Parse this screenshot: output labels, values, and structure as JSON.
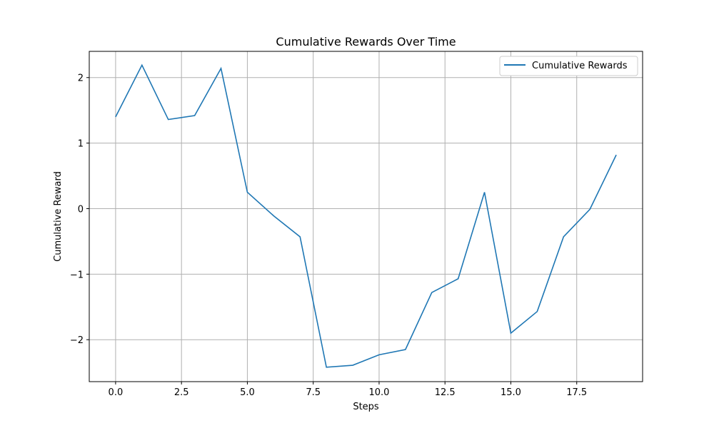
{
  "chart_data": {
    "type": "line",
    "title": "Cumulative Rewards Over Time",
    "xlabel": "Steps",
    "ylabel": "Cumulative Reward",
    "xlim": [
      -1.0,
      20.0
    ],
    "ylim": [
      -2.64,
      2.4
    ],
    "grid": true,
    "legend_position": "top-right",
    "x_ticks": [
      0.0,
      2.5,
      5.0,
      7.5,
      10.0,
      12.5,
      15.0,
      17.5
    ],
    "x_tick_labels": [
      "0.0",
      "2.5",
      "5.0",
      "7.5",
      "10.0",
      "12.5",
      "15.0",
      "17.5"
    ],
    "y_ticks": [
      -2,
      -1,
      0,
      1,
      2
    ],
    "y_tick_labels": [
      "−2",
      "−1",
      "0",
      "1",
      "2"
    ],
    "series": [
      {
        "name": "Cumulative Rewards",
        "color": "#1f77b4",
        "x": [
          0,
          1,
          2,
          3,
          4,
          5,
          6,
          7,
          8,
          9,
          10,
          11,
          12,
          13,
          14,
          15,
          16,
          17,
          18,
          19
        ],
        "y": [
          1.4,
          2.19,
          1.36,
          1.42,
          2.14,
          0.25,
          -0.11,
          -0.43,
          -2.42,
          -2.39,
          -2.23,
          -2.15,
          -1.28,
          -1.07,
          0.25,
          -1.9,
          -1.57,
          -0.43,
          -0.01,
          0.82
        ]
      }
    ]
  }
}
